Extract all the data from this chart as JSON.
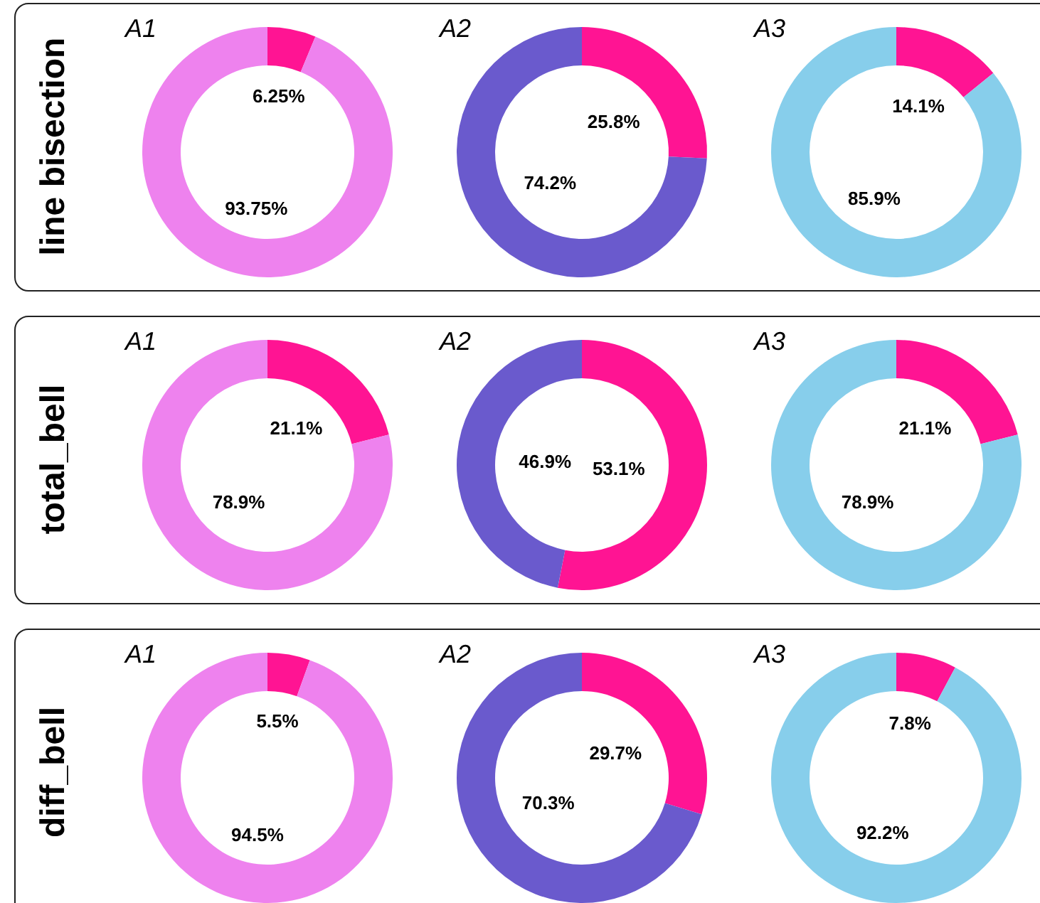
{
  "chart_data": [
    {
      "type": "donut",
      "title": "A1",
      "ylabel": "line bisection",
      "categories": [
        null,
        null
      ],
      "values": [
        6.25,
        93.75
      ],
      "colors": [
        "#ff1493",
        "#ee82ee"
      ],
      "value_labels": [
        "6.25%",
        "93.75%"
      ]
    },
    {
      "type": "donut",
      "title": "A2",
      "categories": [
        null,
        null
      ],
      "values": [
        25.8,
        74.2
      ],
      "colors": [
        "#ff1493",
        "#6a5acd"
      ],
      "value_labels": [
        "25.8%",
        "74.2%"
      ]
    },
    {
      "type": "donut",
      "title": "A3",
      "categories": [
        null,
        null
      ],
      "values": [
        14.1,
        85.9
      ],
      "colors": [
        "#ff1493",
        "#87ceeb"
      ],
      "value_labels": [
        "14.1%",
        "85.9%"
      ]
    },
    {
      "type": "donut",
      "title": "A1",
      "ylabel": "total_bell",
      "categories": [
        null,
        null
      ],
      "values": [
        21.1,
        78.9
      ],
      "colors": [
        "#ff1493",
        "#ee82ee"
      ],
      "value_labels": [
        "21.1%",
        "78.9%"
      ]
    },
    {
      "type": "donut",
      "title": "A2",
      "categories": [
        null,
        null
      ],
      "values": [
        53.1,
        46.9
      ],
      "colors": [
        "#ff1493",
        "#6a5acd"
      ],
      "value_labels": [
        "53.1%",
        "46.9%"
      ]
    },
    {
      "type": "donut",
      "title": "A3",
      "categories": [
        null,
        null
      ],
      "values": [
        21.1,
        78.9
      ],
      "colors": [
        "#ff1493",
        "#87ceeb"
      ],
      "value_labels": [
        "21.1%",
        "78.9%"
      ]
    },
    {
      "type": "donut",
      "title": "A1",
      "ylabel": "diff_bell",
      "categories": [
        null,
        null
      ],
      "values": [
        5.5,
        94.5
      ],
      "colors": [
        "#ff1493",
        "#ee82ee"
      ],
      "value_labels": [
        "5.5%",
        "94.5%"
      ]
    },
    {
      "type": "donut",
      "title": "A2",
      "categories": [
        null,
        null
      ],
      "values": [
        29.7,
        70.3
      ],
      "colors": [
        "#ff1493",
        "#6a5acd"
      ],
      "value_labels": [
        "29.7%",
        "70.3%"
      ]
    },
    {
      "type": "donut",
      "title": "A3",
      "categories": [
        null,
        null
      ],
      "values": [
        7.8,
        92.2
      ],
      "colors": [
        "#ff1493",
        "#87ceeb"
      ],
      "value_labels": [
        "7.8%",
        "92.2%"
      ]
    }
  ]
}
